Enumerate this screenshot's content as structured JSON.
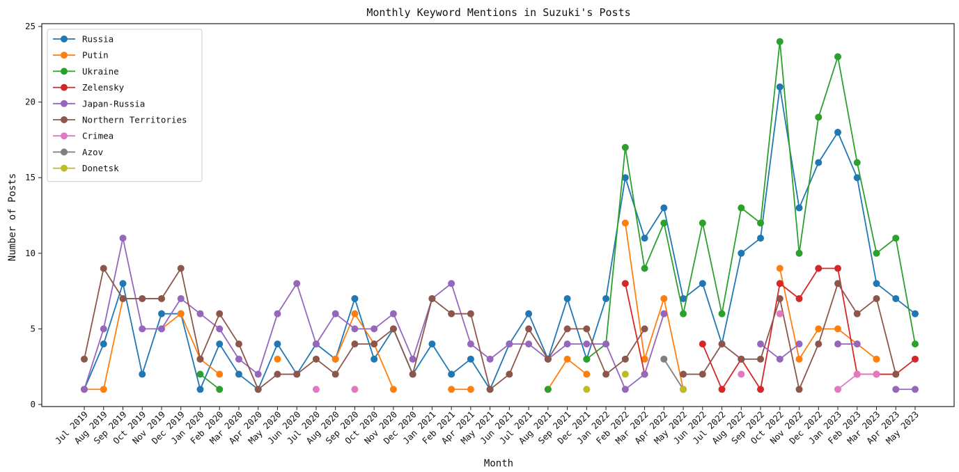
{
  "chart_data": {
    "type": "line",
    "title": "Monthly Keyword Mentions in Suzuki's Posts",
    "xlabel": "Month",
    "ylabel": "Number of Posts",
    "ylim": [
      0,
      25
    ],
    "yticks": [
      0,
      5,
      10,
      15,
      20,
      25
    ],
    "grid": false,
    "legend_position": "top-left",
    "categories": [
      "Jul 2019",
      "Aug 2019",
      "Sep 2019",
      "Oct 2019",
      "Nov 2019",
      "Dec 2019",
      "Jan 2020",
      "Feb 2020",
      "Mar 2020",
      "Apr 2020",
      "May 2020",
      "Jun 2020",
      "Jul 2020",
      "Aug 2020",
      "Sep 2020",
      "Oct 2020",
      "Nov 2020",
      "Dec 2020",
      "Jan 2021",
      "Feb 2021",
      "Apr 2021",
      "May 2021",
      "Jun 2021",
      "Jul 2021",
      "Aug 2021",
      "Sep 2021",
      "Dec 2021",
      "Jan 2022",
      "Feb 2022",
      "Mar 2022",
      "Apr 2022",
      "May 2022",
      "Jun 2022",
      "Jul 2022",
      "Aug 2022",
      "Sep 2022",
      "Oct 2022",
      "Nov 2022",
      "Dec 2022",
      "Jan 2023",
      "Feb 2023",
      "Mar 2023",
      "Apr 2023",
      "May 2023"
    ],
    "series": [
      {
        "name": "Russia",
        "color": "#1f77b4",
        "values": [
          1,
          4,
          8,
          2,
          6,
          6,
          1,
          4,
          2,
          1,
          4,
          2,
          4,
          3,
          7,
          3,
          5,
          2,
          4,
          2,
          3,
          1,
          4,
          6,
          3,
          7,
          3,
          7,
          15,
          11,
          13,
          7,
          8,
          4,
          10,
          11,
          21,
          13,
          16,
          18,
          15,
          8,
          7,
          6
        ]
      },
      {
        "name": "Putin",
        "color": "#ff7f0e",
        "values": [
          1,
          1,
          7,
          null,
          5,
          6,
          3,
          2,
          null,
          null,
          3,
          null,
          null,
          3,
          6,
          4,
          1,
          null,
          null,
          1,
          1,
          null,
          null,
          null,
          1,
          3,
          2,
          null,
          12,
          3,
          7,
          1,
          null,
          null,
          null,
          null,
          9,
          3,
          5,
          5,
          4,
          3,
          null,
          null
        ]
      },
      {
        "name": "Ukraine",
        "color": "#2ca02c",
        "values": [
          null,
          null,
          null,
          null,
          null,
          null,
          2,
          1,
          null,
          null,
          null,
          null,
          null,
          null,
          null,
          null,
          null,
          null,
          null,
          null,
          null,
          null,
          null,
          null,
          1,
          null,
          3,
          4,
          17,
          9,
          12,
          6,
          12,
          6,
          13,
          12,
          24,
          10,
          19,
          23,
          16,
          10,
          11,
          4
        ]
      },
      {
        "name": "Zelensky",
        "color": "#d62728",
        "values": [
          null,
          null,
          null,
          null,
          null,
          null,
          null,
          null,
          null,
          null,
          null,
          null,
          null,
          null,
          null,
          null,
          null,
          null,
          null,
          null,
          null,
          null,
          null,
          null,
          null,
          null,
          null,
          null,
          8,
          2,
          null,
          null,
          4,
          1,
          3,
          1,
          8,
          7,
          9,
          9,
          2,
          2,
          2,
          3
        ]
      },
      {
        "name": "Japan-Russia",
        "color": "#9467bd",
        "values": [
          1,
          5,
          11,
          5,
          5,
          7,
          6,
          5,
          3,
          2,
          6,
          8,
          4,
          6,
          5,
          5,
          6,
          3,
          7,
          8,
          4,
          3,
          4,
          4,
          3,
          4,
          4,
          4,
          1,
          2,
          6,
          null,
          null,
          null,
          null,
          4,
          3,
          4,
          null,
          4,
          4,
          null,
          1,
          1
        ]
      },
      {
        "name": "Northern Territories",
        "color": "#8c564b",
        "values": [
          3,
          9,
          7,
          7,
          7,
          9,
          3,
          6,
          4,
          1,
          2,
          2,
          3,
          2,
          4,
          4,
          5,
          2,
          7,
          6,
          6,
          1,
          2,
          5,
          3,
          5,
          5,
          2,
          3,
          5,
          null,
          2,
          2,
          4,
          3,
          3,
          7,
          1,
          4,
          8,
          6,
          7,
          2,
          null
        ]
      },
      {
        "name": "Crimea",
        "color": "#e377c2",
        "values": [
          null,
          null,
          null,
          null,
          null,
          null,
          null,
          null,
          null,
          null,
          null,
          null,
          1,
          null,
          1,
          null,
          null,
          null,
          null,
          null,
          null,
          null,
          null,
          null,
          null,
          null,
          null,
          null,
          null,
          null,
          null,
          null,
          null,
          null,
          2,
          null,
          6,
          null,
          null,
          1,
          2,
          2,
          null,
          null
        ]
      },
      {
        "name": "Azov",
        "color": "#7f7f7f",
        "values": [
          null,
          null,
          null,
          null,
          null,
          null,
          null,
          null,
          null,
          null,
          null,
          null,
          null,
          null,
          null,
          null,
          null,
          null,
          null,
          null,
          null,
          null,
          null,
          null,
          null,
          null,
          null,
          null,
          null,
          null,
          3,
          1,
          null,
          null,
          null,
          null,
          null,
          null,
          null,
          null,
          null,
          null,
          null,
          null
        ]
      },
      {
        "name": "Donetsk",
        "color": "#bcbd22",
        "values": [
          null,
          null,
          null,
          null,
          null,
          null,
          null,
          null,
          null,
          null,
          null,
          null,
          null,
          null,
          null,
          null,
          null,
          null,
          null,
          null,
          null,
          null,
          null,
          null,
          null,
          null,
          1,
          null,
          2,
          null,
          null,
          1,
          null,
          null,
          null,
          null,
          null,
          null,
          null,
          null,
          null,
          null,
          null,
          null
        ]
      }
    ]
  }
}
